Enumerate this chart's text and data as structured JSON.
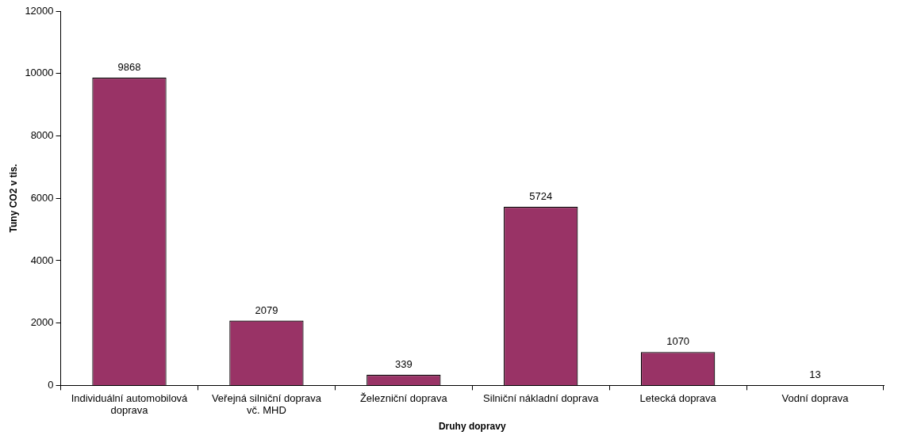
{
  "chart_data": {
    "type": "bar",
    "xlabel": "Druhy dopravy",
    "ylabel": "Tuny CO2 v tis.",
    "categories": [
      "Individuální automobilová doprava",
      "Veřejná silniční doprava vč. MHD",
      "Železniční doprava",
      "Silniční nákladní doprava",
      "Letecká doprava",
      "Vodní doprava"
    ],
    "values": [
      9868,
      2079,
      339,
      5724,
      1070,
      13
    ],
    "color": "#993366",
    "ylim": [
      0,
      12000
    ],
    "yticks": [
      0,
      2000,
      4000,
      6000,
      8000,
      10000,
      12000
    ],
    "grid": false,
    "legend": false,
    "data_labels": true
  }
}
